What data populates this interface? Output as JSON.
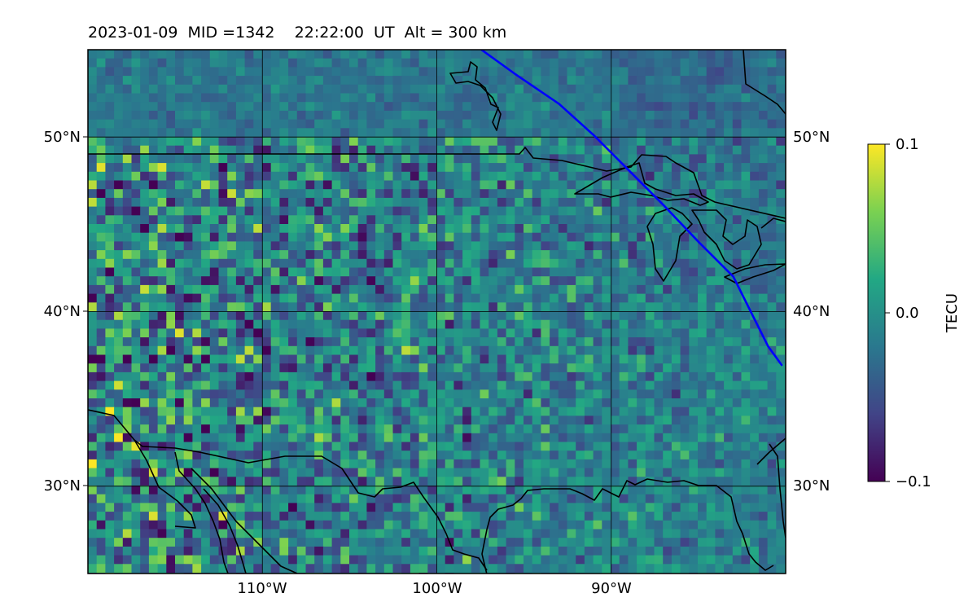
{
  "header": {
    "date": "2023-01-09",
    "mid": "MID =1342",
    "time": "22:22:00  UT",
    "alt": "Alt = 300 km"
  },
  "map": {
    "lon_range": [
      -120,
      -80
    ],
    "lat_range": [
      25,
      55
    ],
    "lat_ticks": [
      {
        "value": 30,
        "label": "30°N"
      },
      {
        "value": 40,
        "label": "40°N"
      },
      {
        "value": 50,
        "label": "50°N"
      }
    ],
    "lon_ticks": [
      {
        "value": -110,
        "label": "110°W"
      },
      {
        "value": -100,
        "label": "100°W"
      },
      {
        "value": -90,
        "label": "90°W"
      }
    ],
    "gridlines": true,
    "field": "TEC perturbation, noisy raster (viridis)",
    "track_color": "#0000ff",
    "track": [
      [
        -98,
        55.4
      ],
      [
        -95.5,
        53.6
      ],
      [
        -93,
        51.9
      ],
      [
        -91,
        50.1
      ],
      [
        -89,
        48.1
      ],
      [
        -87,
        46.1
      ],
      [
        -85,
        44.0
      ],
      [
        -83,
        42.0
      ],
      [
        -82,
        40.0
      ],
      [
        -81,
        38.0
      ],
      [
        -80.2,
        36.9
      ]
    ]
  },
  "colorbar": {
    "label": "TECU",
    "min": -0.1,
    "max": 0.1,
    "ticks": [
      {
        "value": 0.1,
        "label": "0.1"
      },
      {
        "value": 0.0,
        "label": "0.0"
      },
      {
        "value": -0.1,
        "label": "−0.1"
      }
    ],
    "colormap": [
      "#440154",
      "#414487",
      "#2a788e",
      "#22a884",
      "#7ad151",
      "#fde725"
    ]
  }
}
